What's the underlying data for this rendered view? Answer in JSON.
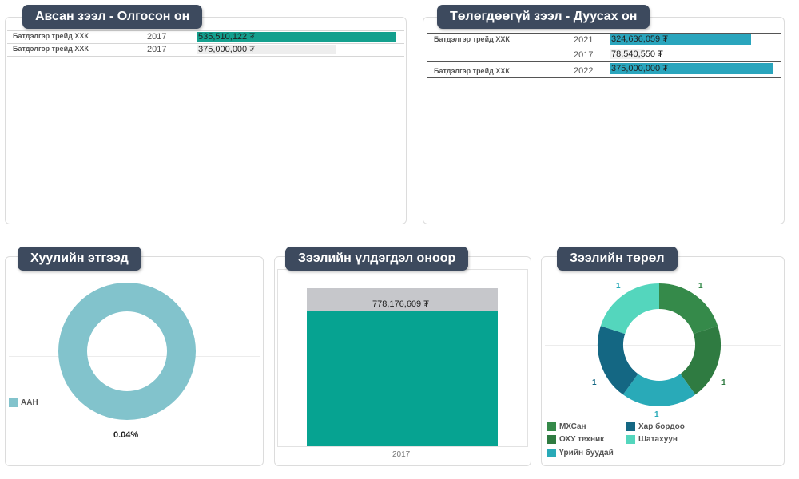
{
  "panels": {
    "loans_taken": {
      "title": "Авсан зээл - Олгосон он",
      "rows": [
        {
          "name": "Батдэлгэр трейд ХХК",
          "year": "2017",
          "value": 535510122,
          "label": "535,510,122 ₮"
        },
        {
          "name": "Батдэлгэр трейд ХХК",
          "year": "2017",
          "value": 375000000,
          "label": "375,000,000 ₮"
        }
      ],
      "colors": {
        "primary": "#14a08e",
        "secondary": "#eeeeee"
      }
    },
    "unpaid_loans": {
      "title": "Төлөгдөөгүй зээл - Дуусах он",
      "groups": [
        {
          "name": "Батдэлгэр трейд ХХК",
          "items": [
            {
              "year": "2021",
              "value": 324636059,
              "label": "324,636,059 ₮"
            },
            {
              "year": "2017",
              "value": 78540550,
              "label": "78,540,550 ₮"
            }
          ]
        },
        {
          "name": "Батдэлгэр трейд ХХК",
          "items": [
            {
              "year": "2022",
              "value": 375000000,
              "label": "375,000,000 ₮"
            }
          ]
        }
      ],
      "colors": {
        "bar": "#2aa5bd",
        "light": "#f2f2f2"
      }
    },
    "legal_entity": {
      "title": "Хуулийн этгээд",
      "legend": "ААН",
      "percent_label": "0.04%",
      "color": "#82c3cc"
    },
    "balance_by_year": {
      "title": "Зээлийн үлдэгдэл оноор",
      "bar_label": "778,176,609 ₮",
      "x_label": "2017",
      "colors": {
        "fill": "#06a391",
        "top": "#c6c7cb"
      }
    },
    "loan_type": {
      "title": "Зээлийн төрөл",
      "legend": [
        {
          "label": "МХСан",
          "color": "#358a4a"
        },
        {
          "label": "Хар бордоо",
          "color": "#146783"
        },
        {
          "label": "ОХУ техник",
          "color": "#2f7b41"
        },
        {
          "label": "Шатахуун",
          "color": "#54d6bd"
        },
        {
          "label": "Үрийн буудай",
          "color": "#29aab8"
        }
      ]
    }
  },
  "chart_data": [
    {
      "type": "bar",
      "title": "Авсан зээл - Олгосон он",
      "categories": [
        "Батдэлгэр трейд ХХК 2017",
        "Батдэлгэр трейд ХХК 2017"
      ],
      "values": [
        535510122,
        375000000
      ]
    },
    {
      "type": "bar",
      "title": "Төлөгдөөгүй зээл - Дуусах он",
      "categories": [
        "Батдэлгэр трейд ХХК 2021",
        "Батдэлгэр трейд ХХК 2017",
        "Батдэлгэр трейд ХХК 2022"
      ],
      "values": [
        324636059,
        78540550,
        375000000
      ]
    },
    {
      "type": "pie",
      "title": "Хуулийн этгээд",
      "labels": [
        "ААН"
      ],
      "values": [
        100
      ],
      "data_label": "0.04%",
      "donut": true
    },
    {
      "type": "bar",
      "title": "Зээлийн үлдэгдэл оноор",
      "categories": [
        "2017"
      ],
      "values": [
        778176609
      ],
      "data_label": "778,176,609 ₮"
    },
    {
      "type": "pie",
      "title": "Зээлийн төрөл",
      "donut": true,
      "labels": [
        "МХСан",
        "ОХУ техник",
        "Үрийн буудай",
        "Хар бордоо",
        "Шатахуун"
      ],
      "values": [
        1,
        1,
        1,
        1,
        1
      ],
      "data_labels": [
        "1",
        "1",
        "1",
        "1",
        "1"
      ],
      "legend_position": "bottom"
    }
  ]
}
